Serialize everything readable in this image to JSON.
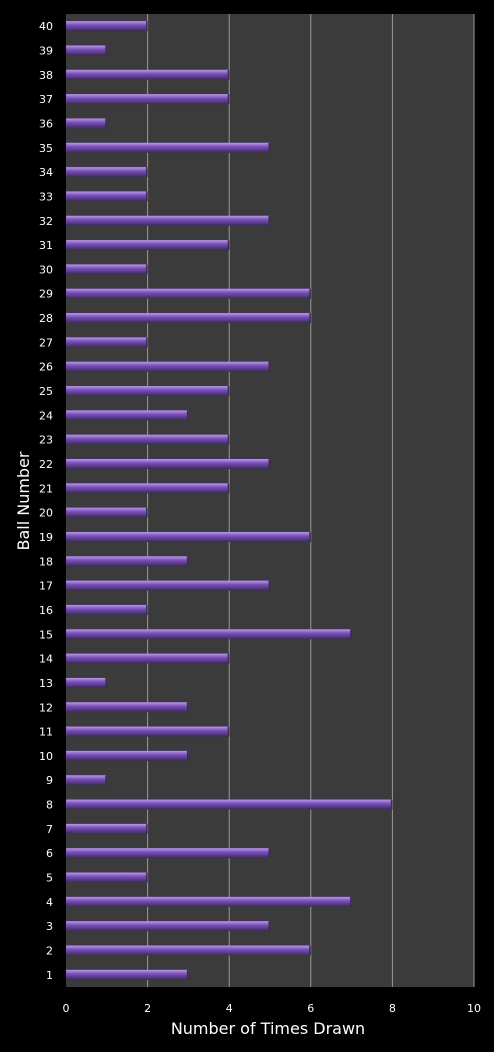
{
  "colors": {
    "background": "#000000",
    "plot_area": "#3b3b3b",
    "gridline": "#9a9a9a",
    "bar": "#7a4fb8",
    "bar_highlight": "#b89ae6",
    "bar_shadow": "#3e2766",
    "text": "#ffffff"
  },
  "chart_data": {
    "type": "bar",
    "orientation": "horizontal",
    "xlabel": "Number of Times Drawn",
    "ylabel": "Ball Number",
    "xlim": [
      0,
      10
    ],
    "xticks": [
      0,
      2,
      4,
      6,
      8,
      10
    ],
    "grid": true,
    "legend": "none",
    "categories": [
      "1",
      "2",
      "3",
      "4",
      "5",
      "6",
      "7",
      "8",
      "9",
      "10",
      "11",
      "12",
      "13",
      "14",
      "15",
      "16",
      "17",
      "18",
      "19",
      "20",
      "21",
      "22",
      "23",
      "24",
      "25",
      "26",
      "27",
      "28",
      "29",
      "30",
      "31",
      "32",
      "33",
      "34",
      "35",
      "36",
      "37",
      "38",
      "39",
      "40"
    ],
    "values": [
      3,
      6,
      5,
      7,
      2,
      5,
      2,
      8,
      1,
      3,
      4,
      3,
      1,
      4,
      7,
      2,
      5,
      3,
      6,
      2,
      4,
      5,
      4,
      3,
      4,
      5,
      2,
      6,
      6,
      2,
      4,
      5,
      2,
      2,
      5,
      1,
      4,
      4,
      1,
      2
    ]
  }
}
